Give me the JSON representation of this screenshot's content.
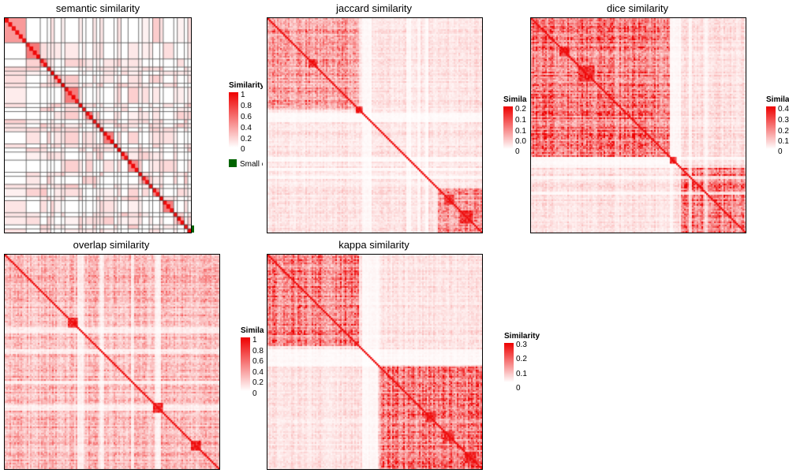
{
  "colors": {
    "low": "#ffffff",
    "high": "#ee0000",
    "small_cluster": "#006400",
    "grid_line": "#4d4d4d"
  },
  "chart_data": [
    {
      "type": "heatmap",
      "title": "semantic similarity",
      "legend": {
        "title": "Similarity",
        "ticks": [
          "1",
          "0.8",
          "0.6",
          "0.4",
          "0.2",
          "0"
        ],
        "extra": "Small cluster"
      },
      "value_range": [
        0,
        1
      ],
      "layout": "block-diagonal clusters separated by grid lines",
      "cluster_sizes": [
        6,
        4,
        2,
        1,
        1,
        2,
        1,
        4,
        1,
        1,
        2,
        1,
        1,
        1,
        3,
        1,
        1,
        2,
        3,
        1,
        2,
        1,
        2,
        1,
        3,
        1,
        2,
        1,
        1
      ]
    },
    {
      "type": "heatmap",
      "title": "jaccard similarity",
      "legend": {
        "title": "Similarity",
        "ticks": [
          "0.2",
          "0.1",
          "0.1",
          "0.0",
          "0"
        ]
      },
      "value_range": [
        0,
        0.2
      ]
    },
    {
      "type": "heatmap",
      "title": "dice similarity",
      "legend": {
        "title": "Similarity",
        "ticks": [
          "0.4",
          "0.3",
          "0.2",
          "0.1",
          "0"
        ]
      },
      "value_range": [
        0,
        0.4
      ]
    },
    {
      "type": "heatmap",
      "title": "overlap similarity",
      "legend": {
        "title": "Similarity",
        "ticks": [
          "1",
          "0.8",
          "0.6",
          "0.4",
          "0.2",
          "0"
        ]
      },
      "value_range": [
        0,
        1
      ]
    },
    {
      "type": "heatmap",
      "title": "kappa similarity",
      "legend": {
        "title": "Similarity",
        "ticks": [
          "0.3",
          "0.2",
          "0.1",
          "0"
        ]
      },
      "value_range": [
        0,
        0.3
      ]
    }
  ]
}
